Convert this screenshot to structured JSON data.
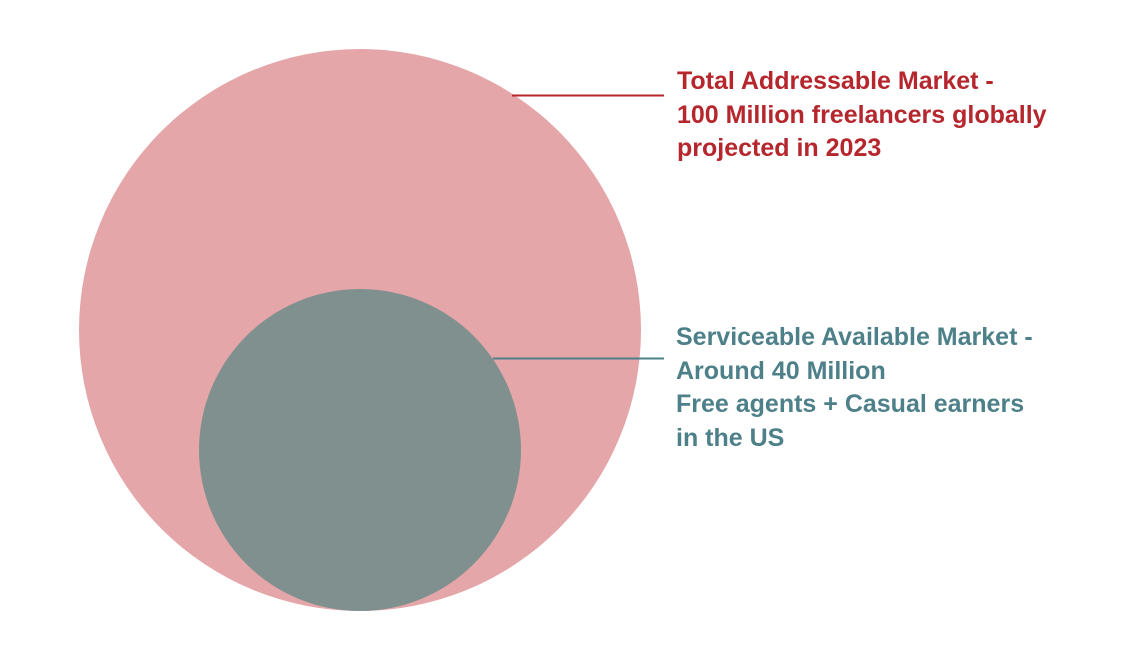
{
  "colors": {
    "tam_fill": "#e4a6a9",
    "sam_fill": "#7f908f",
    "tam_text": "#b5262d",
    "sam_text": "#4d8088",
    "background": "#ffffff"
  },
  "tam": {
    "lines": [
      "Total Addressable Market -",
      "100 Million freelancers globally",
      "projected in 2023"
    ]
  },
  "sam": {
    "lines": [
      "Serviceable Available Market -",
      "Around 40 Million",
      "Free agents + Casual earners",
      "in the US"
    ]
  }
}
